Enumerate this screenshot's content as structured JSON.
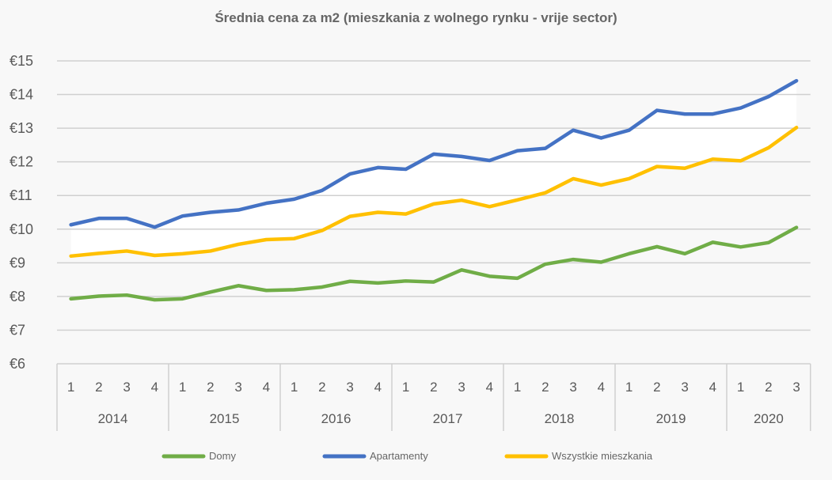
{
  "chart_data": {
    "type": "line",
    "title": "Średnia cena za m2 (mieszkania z wolnego rynku - vrije sector)",
    "xlabel": "",
    "ylabel": "",
    "ylim": [
      6,
      15
    ],
    "yticks": [
      "€6",
      "€7",
      "€8",
      "€9",
      "€10",
      "€11",
      "€12",
      "€13",
      "€14",
      "€15"
    ],
    "grid": true,
    "legend_position": "bottom",
    "years": [
      "2014",
      "2015",
      "2016",
      "2017",
      "2018",
      "2019",
      "2020"
    ],
    "quarters_per_year": [
      4,
      4,
      4,
      4,
      4,
      4,
      3
    ],
    "categories": [
      "2014 Q1",
      "2014 Q2",
      "2014 Q3",
      "2014 Q4",
      "2015 Q1",
      "2015 Q2",
      "2015 Q3",
      "2015 Q4",
      "2016 Q1",
      "2016 Q2",
      "2016 Q3",
      "2016 Q4",
      "2017 Q1",
      "2017 Q2",
      "2017 Q3",
      "2017 Q4",
      "2018 Q1",
      "2018 Q2",
      "2018 Q3",
      "2018 Q4",
      "2019 Q1",
      "2019 Q2",
      "2019 Q3",
      "2019 Q4",
      "2020 Q1",
      "2020 Q2",
      "2020 Q3"
    ],
    "series": [
      {
        "name": "Domy",
        "color": "#70ad47",
        "values": [
          7.93,
          8.01,
          8.04,
          7.9,
          7.93,
          8.13,
          8.32,
          8.18,
          8.2,
          8.28,
          8.45,
          8.4,
          8.46,
          8.43,
          8.79,
          8.6,
          8.54,
          8.96,
          9.1,
          9.02,
          9.27,
          9.48,
          9.27,
          9.61,
          9.47,
          9.6,
          10.05
        ]
      },
      {
        "name": "Apartamenty",
        "color": "#4472c4",
        "values": [
          10.13,
          10.32,
          10.32,
          10.06,
          10.39,
          10.5,
          10.57,
          10.77,
          10.89,
          11.15,
          11.64,
          11.83,
          11.78,
          12.23,
          12.16,
          12.04,
          12.33,
          12.4,
          12.94,
          12.71,
          12.94,
          13.53,
          13.42,
          13.42,
          13.6,
          13.94,
          14.41
        ]
      },
      {
        "name": "Wszystkie mieszkania",
        "color": "#ffc000",
        "values": [
          9.2,
          9.28,
          9.35,
          9.22,
          9.27,
          9.35,
          9.55,
          9.69,
          9.72,
          9.96,
          10.38,
          10.5,
          10.45,
          10.75,
          10.86,
          10.67,
          10.87,
          11.08,
          11.5,
          11.31,
          11.5,
          11.86,
          11.81,
          12.08,
          12.03,
          12.42,
          13.02
        ]
      }
    ],
    "band_fill": "#ffffff"
  }
}
